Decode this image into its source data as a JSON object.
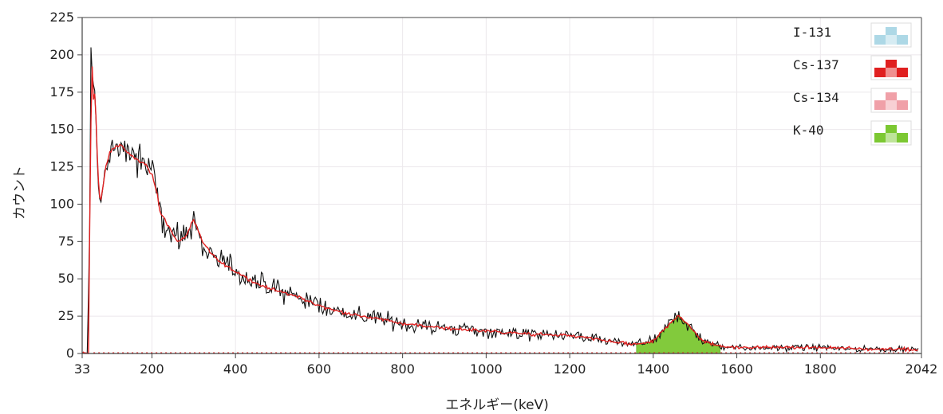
{
  "chart_data": {
    "type": "line",
    "xlabel": "エネルギー(keV)",
    "ylabel": "カウント",
    "xlim": [
      33,
      2042
    ],
    "ylim": [
      0,
      225
    ],
    "x_ticks": [
      33,
      200,
      400,
      600,
      800,
      1000,
      1200,
      1400,
      1600,
      1800,
      2042
    ],
    "y_ticks": [
      0,
      25,
      50,
      75,
      100,
      125,
      150,
      175,
      200,
      225
    ],
    "grid": true,
    "legend_position": "top-right",
    "colors": {
      "measured": "#111111",
      "fit": "#e02020",
      "axis": "#444444",
      "grid": "#ece8ec"
    },
    "legend": [
      {
        "name": "I-131",
        "color": "#add8e6"
      },
      {
        "name": "Cs-137",
        "color": "#e02020"
      },
      {
        "name": "Cs-134",
        "color": "#f0a0a8"
      },
      {
        "name": "K-40",
        "color": "#7cc832"
      }
    ],
    "spectrum_keypoints": {
      "x": [
        33,
        42,
        48,
        52,
        56,
        60,
        64,
        70,
        76,
        82,
        90,
        100,
        110,
        125,
        140,
        160,
        180,
        200,
        210,
        220,
        240,
        260,
        280,
        300,
        320,
        340,
        360,
        400,
        450,
        500,
        550,
        600,
        650,
        700,
        750,
        800,
        900,
        1000,
        1100,
        1200,
        1300,
        1350,
        1400,
        1440,
        1460,
        1480,
        1520,
        1560,
        1600,
        1700,
        1800,
        1900,
        2000,
        2042
      ],
      "y": [
        0,
        0,
        0,
        110,
        200,
        170,
        175,
        125,
        100,
        110,
        125,
        135,
        138,
        140,
        135,
        130,
        128,
        120,
        110,
        95,
        85,
        75,
        78,
        90,
        75,
        67,
        62,
        55,
        47,
        42,
        38,
        32,
        28,
        25,
        23,
        20,
        17,
        15,
        13,
        12,
        8,
        6,
        8,
        20,
        26,
        20,
        8,
        5,
        4,
        4,
        4,
        3,
        3,
        2
      ]
    },
    "k40_peak": {
      "center": 1460,
      "height": 26,
      "range": [
        1360,
        1560
      ]
    }
  }
}
